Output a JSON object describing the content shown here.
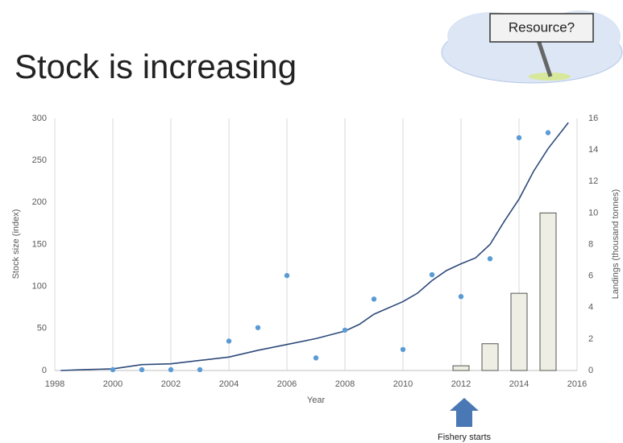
{
  "slide": {
    "sign": "Resource?"
  },
  "chart_data": {
    "type": "line",
    "title": "Stock is increasing",
    "x_label": "Year",
    "y_label": "Stock size (index)",
    "y2_label": "Landings (thousand tonnes)",
    "annotation": "Fishery starts",
    "xlim": [
      1998,
      2016
    ],
    "xticks": [
      1998,
      2000,
      2002,
      2004,
      2006,
      2008,
      2010,
      2012,
      2014,
      2016
    ],
    "ylim": [
      0,
      300
    ],
    "yticks": [
      0,
      50,
      100,
      150,
      200,
      250,
      300
    ],
    "y2lim": [
      0,
      16
    ],
    "y2ticks": [
      0,
      2,
      4,
      6,
      8,
      10,
      12,
      14,
      16
    ],
    "grid": true,
    "series": [
      {
        "type": "bar",
        "axis": "y2",
        "color": "#eeeee4",
        "x": [
          2012,
          2013,
          2014,
          2015
        ],
        "values": [
          0.3,
          1.7,
          4.9,
          10.0
        ]
      },
      {
        "type": "line",
        "color": "#2e4a7a",
        "x": [
          1998.2,
          1999,
          2000,
          2001,
          2002,
          2003,
          2004,
          2005,
          2006,
          2007,
          2008,
          2008.5,
          2009,
          2010,
          2010.5,
          2011,
          2011.5,
          2012,
          2012.5,
          2013,
          2013.5,
          2014,
          2014.5,
          2015,
          2015.7
        ],
        "values": [
          0,
          1,
          2,
          7,
          8,
          12,
          16,
          24,
          31,
          38,
          47,
          55,
          67,
          82,
          92,
          107,
          119,
          127,
          134,
          150,
          178,
          204,
          237,
          264,
          295
        ]
      },
      {
        "type": "scatter",
        "color": "#5b9bd5",
        "x": [
          2000,
          2001,
          2002,
          2003,
          2004,
          2005,
          2006,
          2007,
          2008,
          2009,
          2010,
          2011,
          2012,
          2013,
          2014,
          2015
        ],
        "values": [
          1,
          1,
          1,
          1,
          35,
          51,
          113,
          15,
          48,
          85,
          25,
          114,
          88,
          133,
          277,
          283
        ]
      }
    ]
  }
}
